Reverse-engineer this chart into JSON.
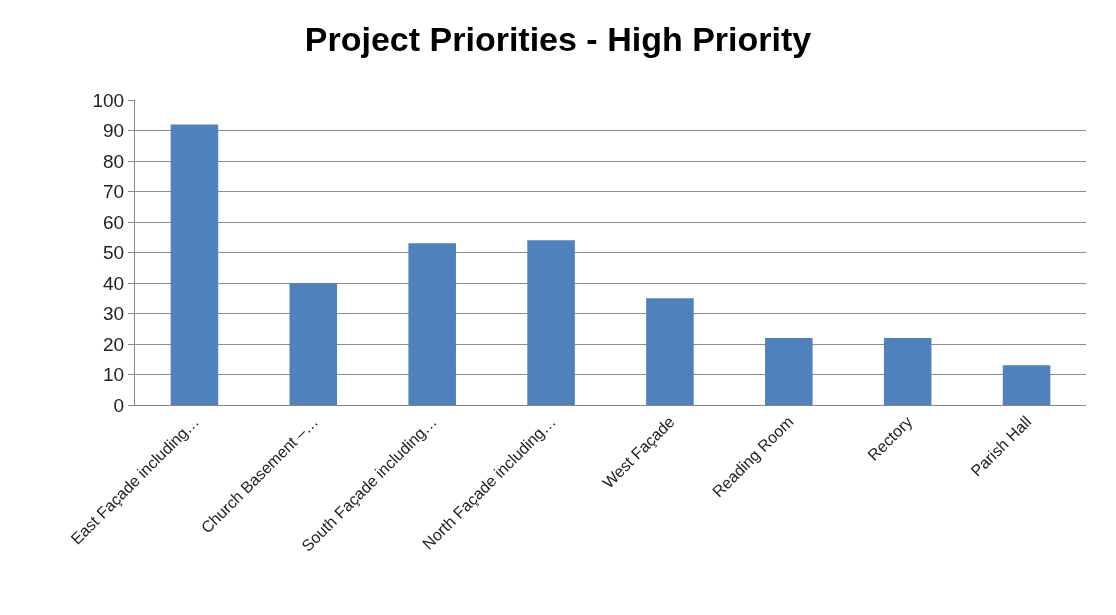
{
  "chart_data": {
    "type": "bar",
    "title": "Project Priorities - High Priority",
    "categories": [
      "East Façade including…",
      "Church Basement –…",
      "South Façade including…",
      "North Façade including…",
      "West Façade",
      "Reading Room",
      "Rectory",
      "Parish Hall"
    ],
    "values": [
      92,
      40,
      53,
      54,
      35,
      22,
      22,
      13
    ],
    "color": "#4f81bd",
    "ylim": [
      0,
      100
    ],
    "yticks": [
      0,
      10,
      20,
      30,
      40,
      50,
      60,
      70,
      80,
      90,
      100
    ],
    "grid": "y",
    "legend": false
  }
}
